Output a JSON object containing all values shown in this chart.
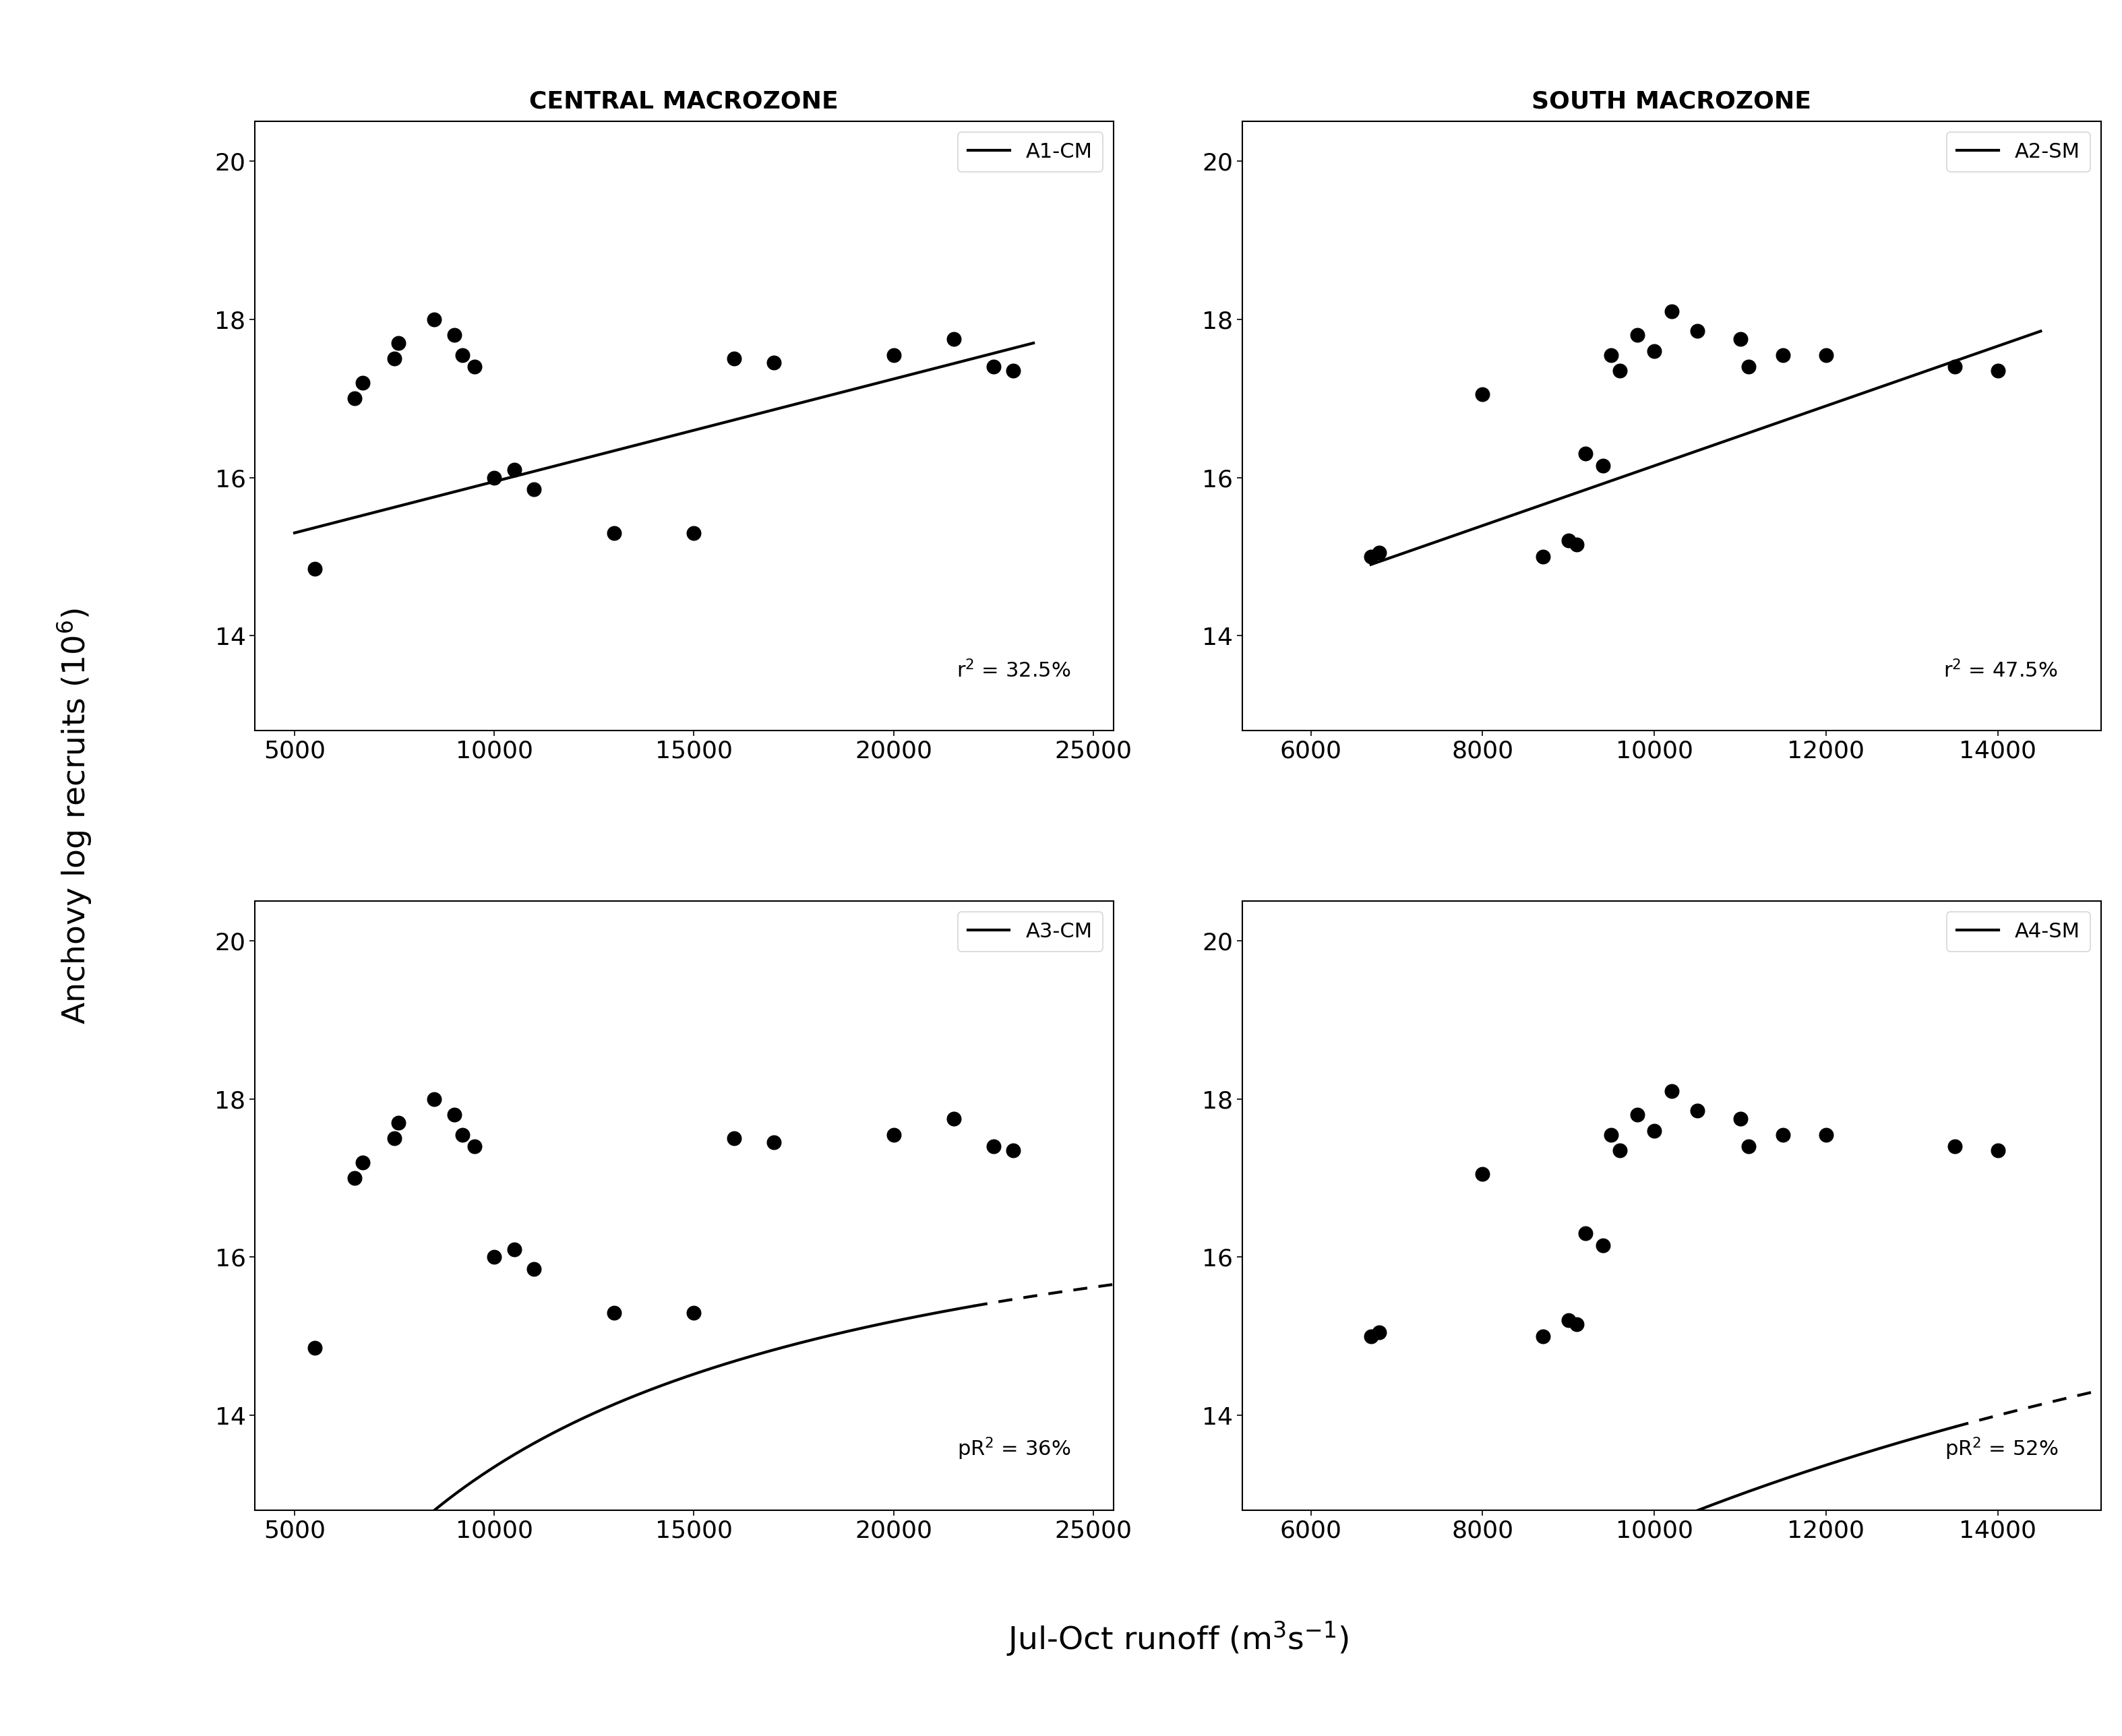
{
  "title_left": "CENTRAL MACROZONE",
  "title_right": "SOUTH MACROZONE",
  "ylabel": "Anchovy log recruits (10$^6$)",
  "xlabel": "Jul-Oct runoff (m$^3$s$^{-1}$)",
  "A1_x": [
    5500,
    6500,
    6700,
    7500,
    7600,
    8500,
    9000,
    9200,
    9500,
    10000,
    10500,
    11000,
    13000,
    15000,
    16000,
    17000,
    20000,
    21500,
    22500,
    23000
  ],
  "A1_y": [
    14.85,
    17.0,
    17.2,
    17.5,
    17.7,
    18.0,
    17.8,
    17.55,
    17.4,
    16.0,
    16.1,
    15.85,
    15.3,
    15.3,
    17.5,
    17.45,
    17.55,
    17.75,
    17.4,
    17.35
  ],
  "A1_line_x": [
    5000,
    23500
  ],
  "A1_line_y": [
    15.3,
    17.7
  ],
  "A1_label": "A1-CM",
  "A1_r2": "r$^2$ = 32.5%",
  "A2_x": [
    6700,
    6800,
    8000,
    8700,
    9000,
    9100,
    9200,
    9400,
    9500,
    9600,
    9800,
    10000,
    10200,
    10500,
    11000,
    11100,
    11500,
    12000,
    13500,
    14000
  ],
  "A2_y": [
    15.0,
    15.05,
    17.05,
    15.0,
    15.2,
    15.15,
    16.3,
    16.15,
    17.55,
    17.35,
    17.8,
    17.6,
    18.1,
    17.85,
    17.75,
    17.4,
    17.55,
    17.55,
    17.4,
    17.35
  ],
  "A2_line_x": [
    6700,
    14500
  ],
  "A2_line_y": [
    14.9,
    17.85
  ],
  "A2_label": "A2-SM",
  "A2_r2": "r$^2$ = 47.5%",
  "A3_x": [
    5500,
    6500,
    6700,
    7500,
    7600,
    8500,
    9000,
    9200,
    9500,
    10000,
    10500,
    11000,
    13000,
    15000,
    16000,
    17000,
    20000,
    21500,
    22500,
    23000
  ],
  "A3_y": [
    14.85,
    17.0,
    17.2,
    17.5,
    17.7,
    18.0,
    17.8,
    17.55,
    17.4,
    16.0,
    16.1,
    15.85,
    15.3,
    15.3,
    17.5,
    17.45,
    17.55,
    17.75,
    17.4,
    17.35
  ],
  "A3_label": "A3-CM",
  "A3_r2": "pR$^2$ = 36%",
  "A3_Vmax": 17.62,
  "A3_Km": 3200,
  "A3_solid_start": 5400,
  "A3_solid_end": 22000,
  "A3_dashed_left_start": 4100,
  "A3_dashed_left_end": 5400,
  "A3_dashed_right_start": 22000,
  "A3_dashed_right_end": 25500,
  "A4_x": [
    6700,
    6800,
    8000,
    8700,
    9000,
    9100,
    9200,
    9400,
    9500,
    9600,
    9800,
    10000,
    10200,
    10500,
    11000,
    11100,
    11500,
    12000,
    13500,
    14000
  ],
  "A4_y": [
    15.0,
    15.05,
    17.05,
    15.0,
    15.2,
    15.15,
    16.3,
    16.15,
    17.55,
    17.35,
    17.8,
    17.6,
    18.1,
    17.85,
    17.75,
    17.4,
    17.55,
    17.55,
    17.4,
    17.35
  ],
  "A4_label": "A4-SM",
  "A4_r2": "pR$^2$ = 52%",
  "A4_Vmax": 19.5,
  "A4_Km": 5500,
  "A4_solid_start": 6700,
  "A4_solid_end": 13500,
  "A4_dashed_left_start": 4500,
  "A4_dashed_left_end": 6700,
  "A4_dashed_right_start": 13500,
  "A4_dashed_right_end": 15500,
  "ylim": [
    12.8,
    20.5
  ],
  "yticks": [
    14,
    16,
    18,
    20
  ],
  "xlim_cm": [
    4000,
    25500
  ],
  "xlim_sm": [
    5200,
    15200
  ],
  "xticks_cm": [
    5000,
    10000,
    15000,
    20000,
    25000
  ],
  "xticks_sm": [
    6000,
    8000,
    10000,
    12000,
    14000
  ],
  "dot_color": "black",
  "dot_size": 220,
  "line_color": "black",
  "line_width": 3.0,
  "title_fontsize": 26,
  "label_fontsize": 34,
  "tick_fontsize": 26,
  "legend_fontsize": 22,
  "annot_fontsize": 22
}
